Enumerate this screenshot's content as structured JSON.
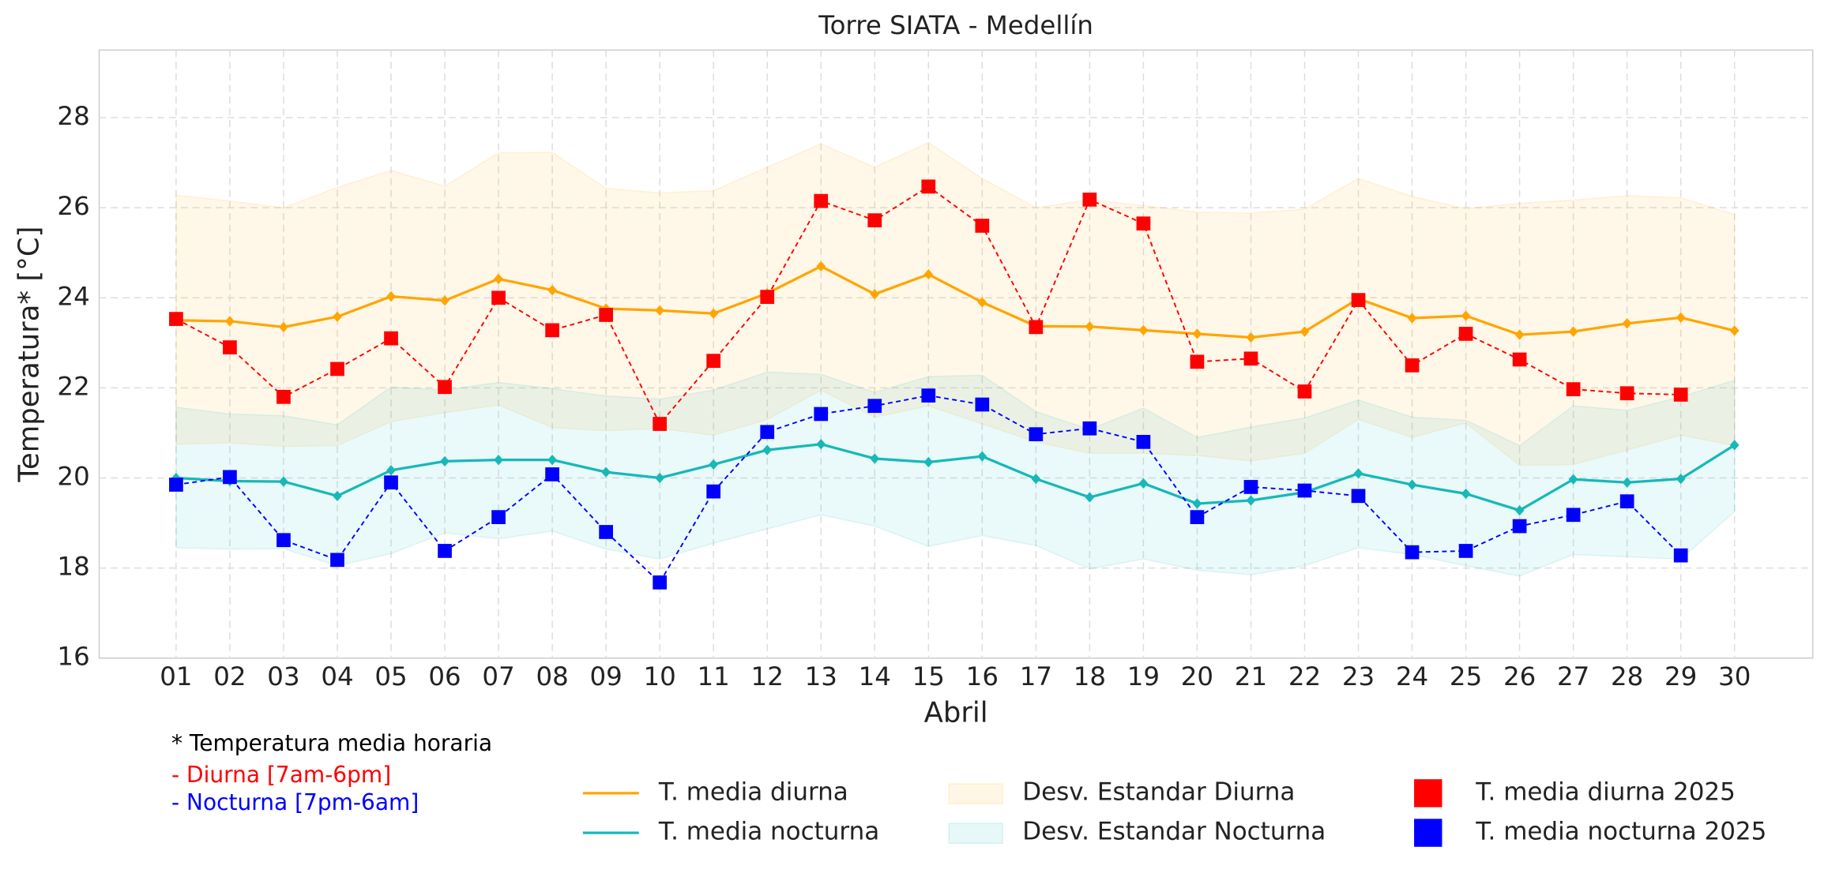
{
  "chart_data": {
    "type": "line",
    "title": "Torre SIATA - Medellín",
    "y_label": "Temperatura* [°C]",
    "x_label": "Abril",
    "notes": [
      "* Temperatura media horaria",
      "- Diurna [7am-6pm]",
      "- Nocturna [7pm-6am]"
    ],
    "note_colors": [
      "#000000",
      "#ff0000",
      "#0000ff"
    ],
    "categories": [
      "01",
      "02",
      "03",
      "04",
      "05",
      "06",
      "07",
      "08",
      "09",
      "10",
      "11",
      "12",
      "13",
      "14",
      "15",
      "16",
      "17",
      "18",
      "19",
      "20",
      "21",
      "22",
      "23",
      "24",
      "25",
      "26",
      "27",
      "28",
      "29",
      "30"
    ],
    "ylim": [
      16,
      29.5
    ],
    "yticks": [
      16,
      18,
      20,
      22,
      24,
      26,
      28
    ],
    "grid": true,
    "bands": [
      {
        "name": "Desv. Estandar Diurna",
        "color": "#ffa500",
        "upper": [
          26.28,
          26.15,
          26.0,
          26.45,
          26.83,
          26.48,
          27.22,
          27.23,
          26.43,
          26.33,
          26.38,
          26.9,
          27.42,
          26.9,
          27.45,
          26.65,
          26.0,
          26.18,
          26.05,
          25.9,
          25.88,
          25.97,
          26.65,
          26.25,
          25.98,
          26.1,
          26.17,
          26.27,
          26.22,
          25.85
        ],
        "lower": [
          20.75,
          20.78,
          20.7,
          20.72,
          21.25,
          21.45,
          21.62,
          21.12,
          21.05,
          21.1,
          20.95,
          21.3,
          21.95,
          21.35,
          21.6,
          21.2,
          20.8,
          20.55,
          20.55,
          20.5,
          20.38,
          20.55,
          21.3,
          20.9,
          21.22,
          20.28,
          20.3,
          20.62,
          20.95,
          20.72
        ]
      },
      {
        "name": "Desv. Estandar Nocturna",
        "color": "#17b8b8",
        "upper": [
          21.57,
          21.42,
          21.38,
          21.18,
          22.02,
          21.95,
          22.12,
          21.98,
          21.82,
          21.75,
          21.95,
          22.35,
          22.3,
          21.9,
          22.25,
          22.28,
          21.47,
          21.08,
          21.55,
          20.9,
          21.13,
          21.33,
          21.73,
          21.35,
          21.28,
          20.72,
          21.6,
          21.5,
          21.8,
          22.17
        ],
        "lower": [
          18.45,
          18.42,
          18.43,
          18.05,
          18.32,
          18.78,
          18.65,
          18.82,
          18.42,
          18.2,
          18.55,
          18.87,
          19.18,
          18.93,
          18.48,
          18.72,
          18.5,
          17.98,
          18.2,
          17.95,
          17.85,
          18.05,
          18.45,
          18.3,
          18.05,
          17.82,
          18.3,
          18.25,
          18.2,
          19.25
        ]
      }
    ],
    "series": [
      {
        "name": "T. media diurna",
        "color": "#ffa500",
        "linestyle": "solid",
        "marker": "diamond",
        "values": [
          23.5,
          23.48,
          23.35,
          23.58,
          24.03,
          23.94,
          24.42,
          24.17,
          23.76,
          23.72,
          23.65,
          24.1,
          24.7,
          24.08,
          24.52,
          23.9,
          23.37,
          23.36,
          23.28,
          23.2,
          23.12,
          23.25,
          23.98,
          23.55,
          23.6,
          23.18,
          23.25,
          23.43,
          23.56,
          23.27
        ]
      },
      {
        "name": "T. media nocturna",
        "color": "#17b8b8",
        "linestyle": "solid",
        "marker": "diamond",
        "values": [
          20.0,
          19.93,
          19.92,
          19.6,
          20.17,
          20.37,
          20.4,
          20.4,
          20.13,
          20.0,
          20.3,
          20.62,
          20.75,
          20.43,
          20.35,
          20.48,
          19.98,
          19.57,
          19.88,
          19.43,
          19.5,
          19.68,
          20.1,
          19.85,
          19.65,
          19.28,
          19.97,
          19.9,
          19.98,
          20.73
        ]
      },
      {
        "name": "T. media diurna 2025",
        "color": "#ff0000",
        "linestyle": "dashed",
        "marker": "square",
        "values": [
          23.53,
          22.9,
          21.8,
          22.42,
          23.1,
          22.02,
          24.0,
          23.28,
          23.62,
          21.2,
          22.6,
          24.02,
          26.15,
          25.72,
          26.47,
          25.6,
          23.35,
          26.18,
          25.65,
          22.58,
          22.65,
          21.92,
          23.95,
          22.5,
          23.2,
          22.63,
          21.97,
          21.88,
          21.85,
          null
        ]
      },
      {
        "name": "T. media nocturna 2025",
        "color": "#0000ff",
        "linestyle": "dashed",
        "marker": "square",
        "values": [
          19.85,
          20.02,
          18.62,
          18.18,
          19.9,
          18.38,
          19.13,
          20.08,
          18.8,
          17.68,
          19.7,
          21.02,
          21.42,
          21.6,
          21.83,
          21.63,
          20.97,
          21.1,
          20.8,
          19.13,
          19.8,
          19.72,
          19.6,
          18.35,
          18.38,
          18.93,
          19.18,
          19.48,
          18.28,
          null
        ]
      }
    ]
  }
}
